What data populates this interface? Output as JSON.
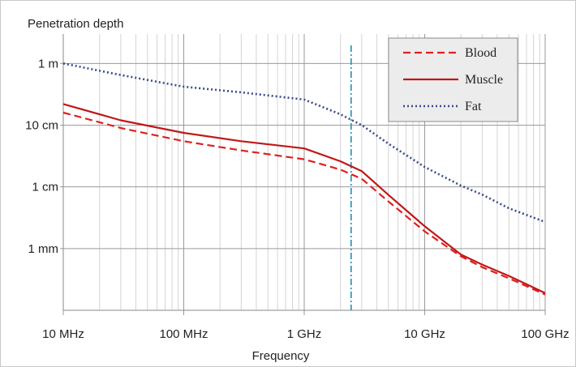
{
  "chart_data": {
    "type": "line",
    "title": "",
    "ylabel": "Penetration depth",
    "xlabel": "Frequency",
    "x_scale": "log",
    "y_scale": "log",
    "x_unit": "Hz",
    "y_unit": "m",
    "xlim": [
      10000000,
      100000000000
    ],
    "ylim": [
      0.0001,
      3
    ],
    "x_ticks": [
      {
        "value": 10000000,
        "label": "10 MHz"
      },
      {
        "value": 100000000,
        "label": "100 MHz"
      },
      {
        "value": 1000000000,
        "label": "1 GHz"
      },
      {
        "value": 10000000000,
        "label": "10 GHz"
      },
      {
        "value": 100000000000,
        "label": "100 GHz"
      }
    ],
    "y_ticks": [
      {
        "value": 1,
        "label": "1 m"
      },
      {
        "value": 0.1,
        "label": "10 cm"
      },
      {
        "value": 0.01,
        "label": "1 cm"
      },
      {
        "value": 0.001,
        "label": "1 mm"
      }
    ],
    "grid": true,
    "legend_position": "top-right",
    "vertical_marker": {
      "x": 2450000000,
      "color": "#1f8fb0",
      "style": "dash-dot"
    },
    "series": [
      {
        "name": "Blood",
        "color": "#e02020",
        "style": "dashed",
        "x": [
          10000000,
          30000000,
          100000000,
          300000000,
          1000000000,
          2000000000,
          3000000000,
          5000000000,
          10000000000,
          20000000000,
          30000000000,
          50000000000,
          100000000000
        ],
        "y": [
          0.16,
          0.09,
          0.055,
          0.039,
          0.028,
          0.019,
          0.0135,
          0.0058,
          0.0019,
          0.00075,
          0.0005,
          0.00033,
          0.00018
        ]
      },
      {
        "name": "Muscle",
        "color": "#c01818",
        "style": "solid",
        "x": [
          10000000,
          30000000,
          100000000,
          300000000,
          1000000000,
          2000000000,
          3000000000,
          5000000000,
          10000000000,
          20000000000,
          30000000000,
          50000000000,
          100000000000
        ],
        "y": [
          0.22,
          0.12,
          0.075,
          0.055,
          0.042,
          0.026,
          0.018,
          0.0074,
          0.0023,
          0.0008,
          0.00055,
          0.00036,
          0.00019
        ]
      },
      {
        "name": "Fat",
        "color": "#3a4a8c",
        "style": "dotted",
        "x": [
          10000000,
          30000000,
          100000000,
          300000000,
          1000000000,
          2000000000,
          3000000000,
          5000000000,
          10000000000,
          20000000000,
          30000000000,
          50000000000,
          100000000000
        ],
        "y": [
          1.0,
          0.65,
          0.42,
          0.34,
          0.26,
          0.15,
          0.1,
          0.05,
          0.021,
          0.0105,
          0.0075,
          0.0045,
          0.0027
        ]
      }
    ]
  }
}
